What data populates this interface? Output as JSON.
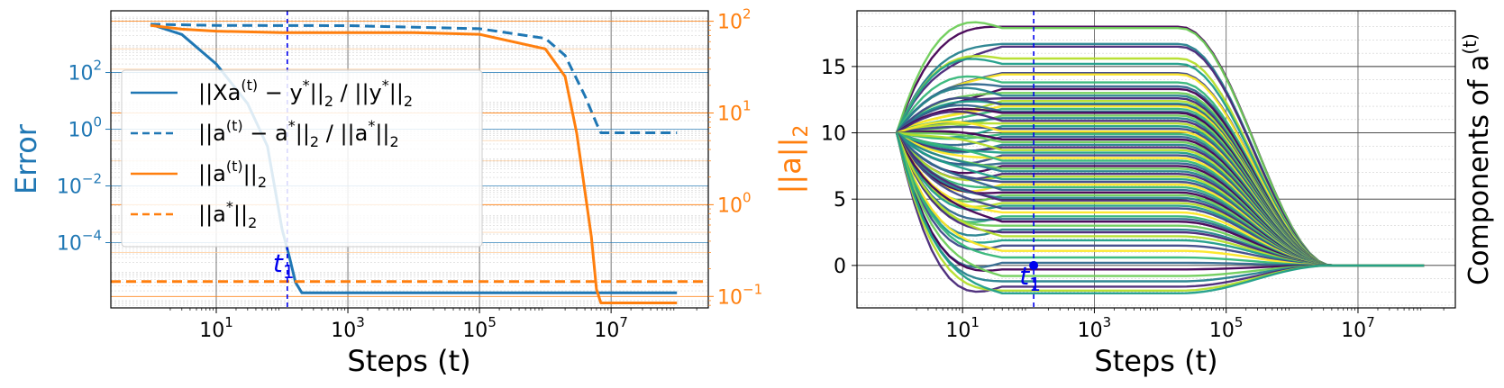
{
  "chart_data": [
    {
      "type": "line",
      "xlabel": "Steps (t)",
      "ylabel_left": "Error",
      "ylabel_right": "||a||",
      "ylabel_right_sub": "2",
      "xscale": "log",
      "xlim": [
        0.25,
        300000000
      ],
      "xticks": [
        {
          "base": "10",
          "exp": "1",
          "value": 10
        },
        {
          "base": "10",
          "exp": "3",
          "value": 1000
        },
        {
          "base": "10",
          "exp": "5",
          "value": 100000
        },
        {
          "base": "10",
          "exp": "7",
          "value": 10000000
        }
      ],
      "left_axis": {
        "scale": "log",
        "ylim": [
          5e-07,
          15000
        ],
        "color": "#1f77b4",
        "ticks": [
          {
            "base": "10",
            "exp": "2",
            "value": 100
          },
          {
            "base": "10",
            "exp": "0",
            "value": 1
          },
          {
            "base": "10",
            "exp": "−2",
            "value": 0.01
          },
          {
            "base": "10",
            "exp": "−4",
            "value": 0.0001
          }
        ]
      },
      "right_axis": {
        "scale": "log",
        "ylim": [
          0.075,
          130
        ],
        "color": "#ff7f0e",
        "ticks": [
          {
            "base": "10",
            "exp": "2",
            "value": 100
          },
          {
            "base": "10",
            "exp": "1",
            "value": 10
          },
          {
            "base": "10",
            "exp": "0",
            "value": 1
          },
          {
            "base": "10",
            "exp": "−1",
            "value": 0.1
          }
        ]
      },
      "grid": true,
      "legend_position": "center-left",
      "series": [
        {
          "name": "||Xa(t) − y*||₂ / ||y*||₂",
          "axis": "left",
          "style": "solid",
          "color": "#1f77b4",
          "x": [
            1,
            3,
            10,
            30,
            60,
            100,
            130,
            160,
            200,
            300,
            1000,
            100000,
            100000000
          ],
          "y": [
            5000,
            2200,
            200,
            8,
            0.25,
            0.0003,
            3e-05,
            4e-06,
            1.7e-06,
            1.7e-06,
            1.7e-06,
            1.7e-06,
            1.7e-06
          ]
        },
        {
          "name": "||a(t) − a*||₂ / ||a*||₂",
          "axis": "left",
          "style": "dashed",
          "color": "#1f77b4",
          "x": [
            1,
            10,
            1000,
            100000,
            1000000,
            2000000,
            4000000,
            6000000,
            7000000,
            100000000
          ],
          "y": [
            5000,
            4600,
            4500,
            3500,
            1600,
            400,
            15,
            1.6,
            0.75,
            0.75
          ]
        },
        {
          "name": "||a(t)||₂",
          "axis": "right",
          "style": "solid",
          "color": "#ff7f0e",
          "x": [
            1,
            3,
            10,
            100,
            10000,
            100000,
            1000000,
            2000000,
            3000000,
            5000000,
            6000000,
            7000000,
            100000000
          ],
          "y": [
            90,
            82,
            78,
            75,
            75,
            72,
            50,
            25,
            6,
            0.45,
            0.12,
            0.085,
            0.085
          ]
        },
        {
          "name": "||a*||₂",
          "axis": "right",
          "style": "dashed",
          "color": "#ff7f0e",
          "x": [
            0.25,
            300000000
          ],
          "y": [
            0.145,
            0.145
          ]
        }
      ],
      "annotation": {
        "text": "t",
        "sub": "1",
        "x": 120,
        "color": "#0000ee"
      },
      "legend_entries": [
        {
          "pre": "||Xa",
          "sup": "(t)",
          "mid": " − y",
          "sup2": "*",
          "post": "||",
          "sub": "2",
          "tail": "  /  ||y",
          "sup3": "*",
          "tail2": "||",
          "sub2": "2",
          "color": "#1f77b4",
          "style": "solid"
        },
        {
          "pre": "||a",
          "sup": "(t)",
          "mid": " − a",
          "sup2": "*",
          "post": "||",
          "sub": "2",
          "tail": "  /  ||a",
          "sup3": "*",
          "tail2": "||",
          "sub2": "2",
          "color": "#1f77b4",
          "style": "dashed"
        },
        {
          "pre": "||a",
          "sup": "(t)",
          "mid": "",
          "sup2": "",
          "post": "||",
          "sub": "2",
          "tail": "",
          "sup3": "",
          "tail2": "",
          "sub2": "",
          "color": "#ff7f0e",
          "style": "solid"
        },
        {
          "pre": "||a",
          "sup": "*",
          "mid": "",
          "sup2": "",
          "post": "||",
          "sub": "2",
          "tail": "",
          "sup3": "",
          "tail2": "",
          "sub2": "",
          "color": "#ff7f0e",
          "style": "dashed"
        }
      ]
    },
    {
      "type": "line",
      "xlabel": "Steps (t)",
      "ylabel": "Components of a",
      "ylabel_sup": "(t)",
      "xscale": "log",
      "xlim": [
        0.25,
        300000000
      ],
      "ylim": [
        -3.2,
        19.2
      ],
      "xticks": [
        {
          "base": "10",
          "exp": "1",
          "value": 10
        },
        {
          "base": "10",
          "exp": "3",
          "value": 1000
        },
        {
          "base": "10",
          "exp": "5",
          "value": 100000
        },
        {
          "base": "10",
          "exp": "7",
          "value": 10000000
        }
      ],
      "yticks": [
        {
          "label": "15",
          "value": 15
        },
        {
          "label": "10",
          "value": 10
        },
        {
          "label": "5",
          "value": 5
        },
        {
          "label": "0",
          "value": 0
        }
      ],
      "grid": true,
      "start": {
        "x": 1,
        "y": 10
      },
      "plateau_until": 20000,
      "converge_x": 4000000,
      "end_x": 100000000,
      "end_value": 0,
      "plateau_values": [
        18.0,
        17.9,
        16.7,
        16.5,
        15.6,
        15.2,
        14.5,
        14.4,
        13.8,
        13.5,
        13.3,
        13.0,
        12.8,
        12.6,
        12.4,
        12.2,
        12.1,
        12.0,
        11.8,
        11.6,
        11.5,
        11.3,
        11.1,
        10.9,
        10.7,
        10.5,
        10.3,
        10.1,
        9.9,
        9.7,
        9.5,
        9.3,
        9.1,
        8.9,
        8.7,
        8.5,
        8.3,
        8.1,
        7.9,
        7.7,
        7.5,
        7.3,
        7.1,
        6.9,
        6.7,
        6.5,
        6.3,
        6.1,
        5.9,
        5.7,
        5.5,
        5.3,
        5.1,
        4.9,
        4.7,
        4.5,
        4.3,
        4.0,
        3.7,
        3.5,
        3.3,
        3.0,
        2.7,
        2.5,
        2.2,
        1.9,
        1.5,
        1.1,
        0.6,
        0.2,
        -0.3,
        -0.8,
        -1.2,
        -1.6,
        -1.9,
        -2.1
      ],
      "colors": [
        "#440154",
        "#482878",
        "#3e4989",
        "#31688e",
        "#26828e",
        "#1f9e89",
        "#35b779",
        "#6ece58",
        "#b5de2b",
        "#fde725"
      ],
      "annotation": {
        "text": "t",
        "sub": "1",
        "x": 120,
        "y": 0,
        "color": "#0000ee"
      }
    }
  ]
}
